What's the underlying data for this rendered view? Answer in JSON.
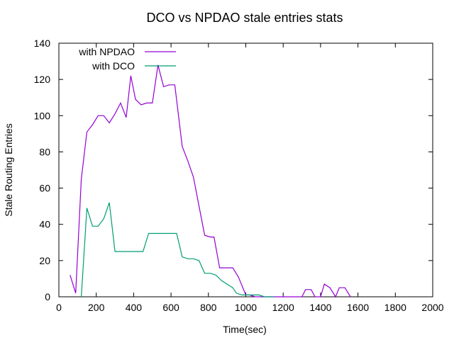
{
  "chart_data": {
    "type": "line",
    "title": "DCO vs NPDAO stale entries stats",
    "xlabel": "Time(sec)",
    "ylabel": "Stale Routing Entries",
    "xlim": [
      0,
      2000
    ],
    "ylim": [
      0,
      140
    ],
    "xticks": [
      0,
      200,
      400,
      600,
      800,
      1000,
      1200,
      1400,
      1600,
      1800,
      2000
    ],
    "yticks": [
      0,
      20,
      40,
      60,
      80,
      100,
      120,
      140
    ],
    "grid": false,
    "legend_position": "top-left",
    "series": [
      {
        "name": "with NPDAO",
        "color": "#9400d3",
        "points": [
          [
            60,
            12
          ],
          [
            90,
            2
          ],
          [
            120,
            65
          ],
          [
            150,
            91
          ],
          [
            180,
            95
          ],
          [
            210,
            100
          ],
          [
            240,
            100
          ],
          [
            270,
            96
          ],
          [
            300,
            101
          ],
          [
            330,
            107
          ],
          [
            360,
            99
          ],
          [
            385,
            122
          ],
          [
            410,
            109
          ],
          [
            440,
            106
          ],
          [
            470,
            107
          ],
          [
            500,
            107
          ],
          [
            530,
            128
          ],
          [
            560,
            116
          ],
          [
            590,
            117
          ],
          [
            620,
            117
          ],
          [
            660,
            83
          ],
          [
            690,
            75
          ],
          [
            720,
            66
          ],
          [
            750,
            50
          ],
          [
            780,
            34
          ],
          [
            810,
            33
          ],
          [
            830,
            33
          ],
          [
            860,
            16
          ],
          [
            880,
            16
          ],
          [
            900,
            16
          ],
          [
            930,
            16
          ],
          [
            960,
            11
          ],
          [
            1000,
            1
          ],
          [
            1020,
            1
          ],
          [
            1050,
            0
          ],
          [
            1300,
            0
          ],
          [
            1320,
            4
          ],
          [
            1350,
            4
          ],
          [
            1370,
            0
          ],
          [
            1400,
            0
          ],
          [
            1420,
            7
          ],
          [
            1450,
            5
          ],
          [
            1480,
            0
          ],
          [
            1500,
            5
          ],
          [
            1530,
            5
          ],
          [
            1560,
            0
          ]
        ]
      },
      {
        "name": "with DCO",
        "color": "#009e73",
        "points": [
          [
            120,
            0
          ],
          [
            150,
            49
          ],
          [
            180,
            39
          ],
          [
            210,
            39
          ],
          [
            240,
            43
          ],
          [
            270,
            52
          ],
          [
            300,
            25
          ],
          [
            330,
            25
          ],
          [
            360,
            25
          ],
          [
            400,
            25
          ],
          [
            450,
            25
          ],
          [
            480,
            35
          ],
          [
            520,
            35
          ],
          [
            560,
            35
          ],
          [
            600,
            35
          ],
          [
            630,
            35
          ],
          [
            660,
            22
          ],
          [
            690,
            21
          ],
          [
            720,
            21
          ],
          [
            750,
            20
          ],
          [
            780,
            13
          ],
          [
            810,
            13
          ],
          [
            840,
            12
          ],
          [
            870,
            9
          ],
          [
            900,
            7
          ],
          [
            930,
            5
          ],
          [
            950,
            2
          ],
          [
            980,
            1
          ],
          [
            1010,
            1
          ],
          [
            1040,
            1
          ],
          [
            1070,
            1
          ],
          [
            1100,
            0
          ],
          [
            1150,
            0
          ]
        ]
      }
    ]
  }
}
